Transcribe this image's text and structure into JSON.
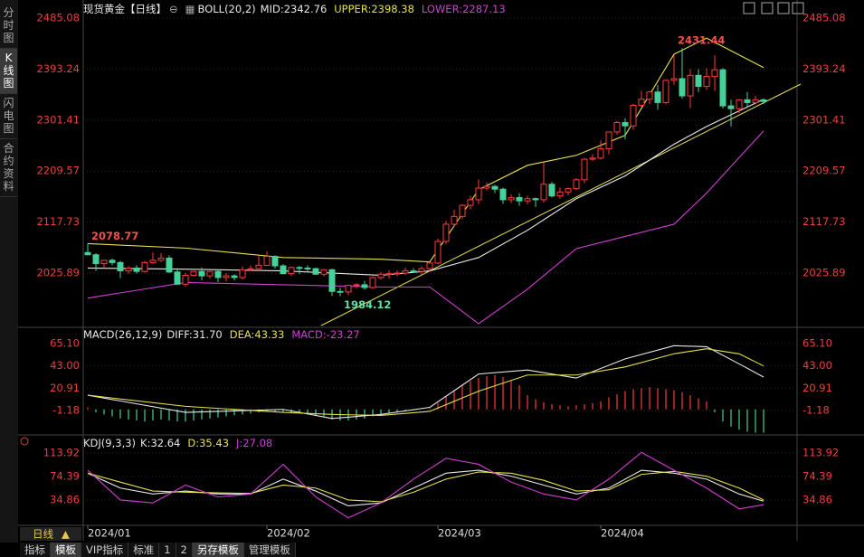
{
  "ui": {
    "side_tabs": [
      "分时图",
      "K线图",
      "闪电图",
      "合约资料"
    ],
    "period": "日线",
    "bottom_tabs": [
      "指标",
      "模板",
      "VIP指标",
      "标准",
      "1",
      "2",
      "另存模板",
      "管理模板"
    ]
  },
  "chart_data": [
    {
      "type": "candlestick",
      "title": "现货黄金【日线】",
      "indicator": "BOLL(20,2)",
      "mid_label": "MID:2342.76",
      "upper_label": "UPPER:2398.38",
      "lower_label": "LOWER:2287.13",
      "ylim": [
        1931.6,
        2504.6
      ],
      "yticks": [
        {
          "value": 2485.08,
          "label": "2485.08"
        },
        {
          "value": 2393.24,
          "label": "2393.24"
        },
        {
          "value": 2301.41,
          "label": "2301.41"
        },
        {
          "value": 2209.57,
          "label": "2209.57"
        },
        {
          "value": 2117.73,
          "label": "2117.73"
        },
        {
          "value": 2025.89,
          "label": "2025.89"
        }
      ],
      "candles": [
        [
          2063,
          2079,
          2058,
          2059
        ],
        [
          2059,
          2062,
          2030,
          2043
        ],
        [
          2043,
          2050,
          2035,
          2049
        ],
        [
          2049,
          2052,
          2040,
          2045
        ],
        [
          2045,
          2048,
          2017,
          2030
        ],
        [
          2030,
          2038,
          2025,
          2035
        ],
        [
          2035,
          2040,
          2025,
          2029
        ],
        [
          2029,
          2048,
          2027,
          2045
        ],
        [
          2045,
          2063,
          2043,
          2049
        ],
        [
          2049,
          2062,
          2046,
          2053
        ],
        [
          2053,
          2058,
          2026,
          2028
        ],
        [
          2028,
          2035,
          2005,
          2006
        ],
        [
          2006,
          2026,
          2002,
          2022
        ],
        [
          2022,
          2030,
          2020,
          2029
        ],
        [
          2029,
          2036,
          2013,
          2021
        ],
        [
          2021,
          2030,
          2016,
          2029
        ],
        [
          2029,
          2032,
          2010,
          2018
        ],
        [
          2018,
          2026,
          2011,
          2021
        ],
        [
          2021,
          2024,
          2013,
          2018
        ],
        [
          2018,
          2038,
          2014,
          2032
        ],
        [
          2032,
          2040,
          2030,
          2034
        ],
        [
          2034,
          2058,
          2030,
          2040
        ],
        [
          2040,
          2065,
          2039,
          2056
        ],
        [
          2056,
          2058,
          2034,
          2039
        ],
        [
          2039,
          2042,
          2024,
          2025
        ],
        [
          2025,
          2038,
          2021,
          2036
        ],
        [
          2036,
          2039,
          2024,
          2035
        ],
        [
          2035,
          2040,
          2029,
          2034
        ],
        [
          2034,
          2036,
          2023,
          2024
        ],
        [
          2024,
          2033,
          2020,
          2032
        ],
        [
          2032,
          2034,
          1985,
          1993
        ],
        [
          1993,
          2000,
          1984,
          1992
        ],
        [
          1992,
          2005,
          1986,
          2004
        ],
        [
          2004,
          2008,
          1998,
          2005
        ],
        [
          2005,
          2012,
          1996,
          2000
        ],
        [
          2000,
          2020,
          1998,
          2018
        ],
        [
          2018,
          2028,
          2014,
          2024
        ],
        [
          2024,
          2031,
          2016,
          2025
        ],
        [
          2025,
          2031,
          2020,
          2026
        ],
        [
          2026,
          2036,
          2023,
          2030
        ],
        [
          2030,
          2035,
          2026,
          2029
        ],
        [
          2029,
          2038,
          2024,
          2034
        ],
        [
          2034,
          2045,
          2030,
          2044
        ],
        [
          2044,
          2088,
          2042,
          2083
        ],
        [
          2083,
          2120,
          2078,
          2114
        ],
        [
          2114,
          2140,
          2110,
          2128
        ],
        [
          2128,
          2150,
          2123,
          2148
        ],
        [
          2148,
          2165,
          2141,
          2158
        ],
        [
          2158,
          2195,
          2150,
          2179
        ],
        [
          2179,
          2189,
          2175,
          2182
        ],
        [
          2182,
          2185,
          2170,
          2177
        ],
        [
          2177,
          2180,
          2151,
          2158
        ],
        [
          2158,
          2168,
          2152,
          2162
        ],
        [
          2162,
          2170,
          2147,
          2156
        ],
        [
          2156,
          2165,
          2150,
          2160
        ],
        [
          2160,
          2162,
          2145,
          2158
        ],
        [
          2158,
          2225,
          2153,
          2186
        ],
        [
          2186,
          2190,
          2162,
          2165
        ],
        [
          2165,
          2180,
          2160,
          2172
        ],
        [
          2172,
          2180,
          2166,
          2178
        ],
        [
          2178,
          2197,
          2175,
          2194
        ],
        [
          2194,
          2233,
          2188,
          2231
        ],
        [
          2231,
          2240,
          2228,
          2233
        ],
        [
          2233,
          2265,
          2230,
          2250
        ],
        [
          2250,
          2280,
          2240,
          2280
        ],
        [
          2280,
          2300,
          2275,
          2297
        ],
        [
          2297,
          2305,
          2267,
          2291
        ],
        [
          2291,
          2331,
          2284,
          2328
        ],
        [
          2328,
          2354,
          2325,
          2339
        ],
        [
          2339,
          2354,
          2330,
          2352
        ],
        [
          2352,
          2365,
          2320,
          2333
        ],
        [
          2333,
          2375,
          2330,
          2373
        ],
        [
          2373,
          2418,
          2365,
          2376
        ],
        [
          2376,
          2431,
          2340,
          2345
        ],
        [
          2345,
          2393,
          2323,
          2382
        ],
        [
          2382,
          2393,
          2352,
          2362
        ],
        [
          2362,
          2395,
          2356,
          2380
        ],
        [
          2380,
          2418,
          2354,
          2392
        ],
        [
          2392,
          2395,
          2322,
          2327
        ],
        [
          2327,
          2338,
          2290,
          2322
        ],
        [
          2322,
          2339,
          2314,
          2338
        ],
        [
          2338,
          2352,
          2323,
          2333
        ],
        [
          2333,
          2345,
          2330,
          2338
        ],
        [
          2338,
          2340,
          2330,
          2335
        ]
      ],
      "up_color": "#ff3b3b",
      "down_color": "#45d19a",
      "series": [
        {
          "name": "UPPER",
          "color": "#e6e04a",
          "x": [
            0,
            12,
            24,
            36,
            42,
            48,
            54,
            60,
            66,
            72,
            76,
            83
          ],
          "values": [
            2079,
            2071,
            2054,
            2051,
            2046,
            2176,
            2220,
            2238,
            2274,
            2420,
            2449,
            2396
          ]
        },
        {
          "name": "MID",
          "color": "#e8e8e8",
          "x": [
            0,
            12,
            24,
            36,
            42,
            48,
            54,
            60,
            66,
            72,
            76,
            83
          ],
          "values": [
            2035,
            2033,
            2030,
            2022,
            2030,
            2054,
            2103,
            2160,
            2201,
            2258,
            2290,
            2339
          ]
        },
        {
          "name": "LOWER",
          "color": "#d23fd2",
          "x": [
            0,
            12,
            24,
            36,
            42,
            48,
            54,
            60,
            66,
            72,
            76,
            83
          ],
          "values": [
            1981,
            2009,
            2005,
            2001,
            2001,
            1935,
            1997,
            2070,
            2092,
            2114,
            2170,
            2282
          ]
        }
      ],
      "annotations": [
        {
          "text": "2078.77",
          "x": 0,
          "value": 2078.77,
          "color": "#ff4d4d"
        },
        {
          "text": "1984.12",
          "x": 31,
          "value": 1984.12,
          "color": "#5fe0a8"
        },
        {
          "text": "2431.44",
          "x": 72,
          "value": 2431.44,
          "color": "#ff4d4d"
        }
      ]
    },
    {
      "type": "macd",
      "title": "MACD(26,12,9)",
      "diff_label": "DIFF:31.70",
      "dea_label": "DEA:43.33",
      "macd_label": "MACD:-23.27",
      "ylim": [
        -22.6,
        79.4
      ],
      "yticks": [
        {
          "value": 65.1,
          "label": "65.10"
        },
        {
          "value": 43,
          "label": "43.00"
        },
        {
          "value": 20.91,
          "label": "20.91"
        },
        -1.18
      ],
      "histogram": [
        2,
        -3,
        -5,
        -7,
        -9,
        -10,
        -11,
        -12,
        -11,
        -10,
        -11,
        -12,
        -12,
        -11,
        -10,
        -9,
        -8,
        -7,
        -6,
        -5,
        -4,
        -3,
        -2,
        -2,
        -3,
        -3,
        -4,
        -5,
        -6,
        -7,
        -10,
        -11,
        -11,
        -10,
        -9,
        -7,
        -5,
        -4,
        -3,
        -2,
        -1,
        0,
        1,
        6,
        13,
        19,
        24,
        28,
        31,
        33,
        34,
        32,
        28,
        24,
        14,
        10,
        7,
        5,
        4,
        3,
        4,
        5,
        6,
        8,
        12,
        15,
        18,
        20,
        21,
        22,
        21,
        20,
        19,
        17,
        14,
        11,
        8,
        -3,
        -12,
        -17,
        -20,
        -22,
        -23,
        -23
      ],
      "up_color": "#ff3b3b",
      "down_color": "#45d19a",
      "series": [
        {
          "name": "DIFF",
          "color": "#e8e8e8",
          "x": [
            0,
            12,
            24,
            30,
            36,
            42,
            48,
            54,
            60,
            66,
            72,
            76,
            80,
            83
          ],
          "values": [
            14,
            -3,
            0,
            -9,
            -5,
            2,
            35,
            39,
            31,
            50,
            63,
            62,
            45,
            32
          ]
        },
        {
          "name": "DEA",
          "color": "#e6e04a",
          "x": [
            0,
            12,
            24,
            30,
            36,
            42,
            48,
            54,
            60,
            66,
            72,
            76,
            80,
            83
          ],
          "values": [
            14,
            3,
            -3,
            -5,
            -6,
            -2,
            18,
            34,
            34,
            42,
            55,
            60,
            55,
            43
          ]
        }
      ]
    },
    {
      "type": "kdj",
      "title": "KDJ(9,3,3)",
      "k_label": "K:32.64",
      "d_label": "D:35.43",
      "j_label": "J:27.08",
      "ylim": [
        -6.2,
        139.8
      ],
      "yticks": [
        {
          "value": 113.92,
          "label": "113.92"
        },
        {
          "value": 74.39,
          "label": "74.39"
        },
        {
          "value": 34.86,
          "label": "34.86"
        }
      ],
      "xticks": [
        {
          "value": 0,
          "label": "2024/01"
        },
        {
          "value": 22,
          "label": "2024/02"
        },
        {
          "value": 43,
          "label": "2024/03"
        },
        {
          "value": 63,
          "label": "2024/04"
        }
      ],
      "series": [
        {
          "name": "K",
          "color": "#e8e8e8",
          "x": [
            0,
            4,
            8,
            12,
            16,
            20,
            24,
            28,
            32,
            36,
            40,
            44,
            48,
            52,
            56,
            60,
            64,
            68,
            72,
            76,
            80,
            83
          ],
          "values": [
            80,
            55,
            45,
            50,
            45,
            45,
            70,
            50,
            25,
            30,
            55,
            80,
            85,
            75,
            60,
            45,
            55,
            85,
            80,
            70,
            45,
            33
          ]
        },
        {
          "name": "D",
          "color": "#e6e04a",
          "x": [
            0,
            4,
            8,
            12,
            16,
            20,
            24,
            28,
            32,
            36,
            40,
            44,
            48,
            52,
            56,
            60,
            64,
            68,
            72,
            76,
            80,
            83
          ],
          "values": [
            80,
            65,
            50,
            48,
            47,
            46,
            60,
            55,
            35,
            32,
            48,
            70,
            82,
            80,
            68,
            50,
            52,
            78,
            83,
            75,
            55,
            35
          ]
        },
        {
          "name": "J",
          "color": "#d23fd2",
          "x": [
            0,
            4,
            8,
            12,
            16,
            20,
            24,
            28,
            32,
            36,
            40,
            44,
            48,
            52,
            56,
            60,
            64,
            68,
            72,
            76,
            80,
            83
          ],
          "values": [
            85,
            35,
            30,
            60,
            40,
            45,
            95,
            40,
            5,
            30,
            70,
            105,
            95,
            65,
            45,
            35,
            70,
            115,
            85,
            55,
            20,
            27
          ]
        }
      ]
    }
  ]
}
